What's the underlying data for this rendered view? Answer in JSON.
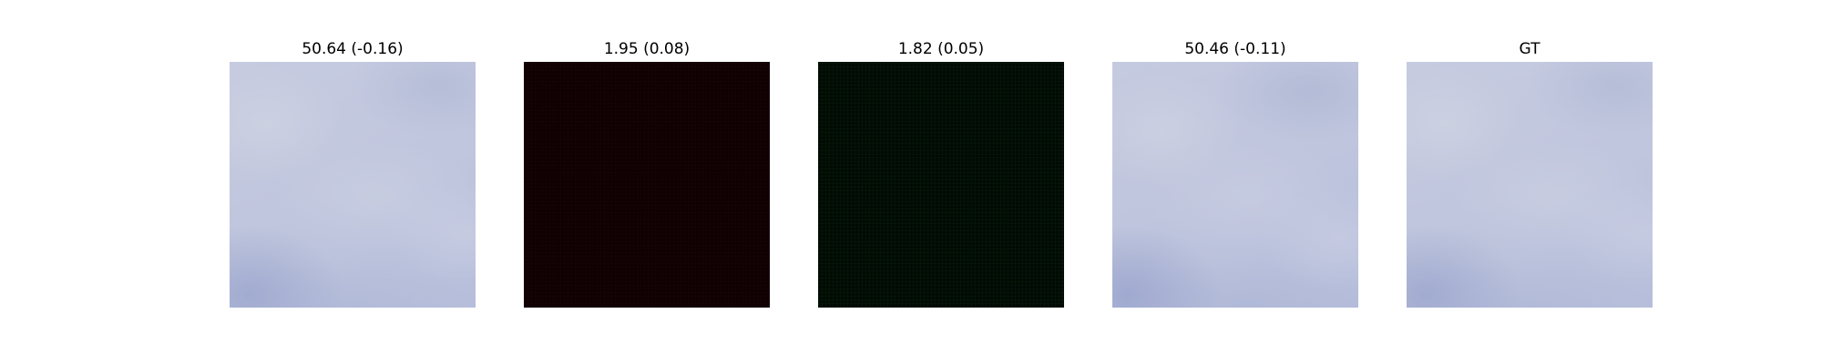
{
  "panels": [
    {
      "title": "50.64 (-0.16)"
    },
    {
      "title": "1.95 (0.08)"
    },
    {
      "title": "1.82 (0.05)"
    },
    {
      "title": "50.46 (-0.11)"
    },
    {
      "title": "GT"
    }
  ],
  "colors": {
    "background": "#ffffff",
    "sky_light": "#c6cbe0",
    "sky_dark": "#a9b2d6",
    "dark_red": "#0f0002",
    "dark_green": "#010a03"
  }
}
